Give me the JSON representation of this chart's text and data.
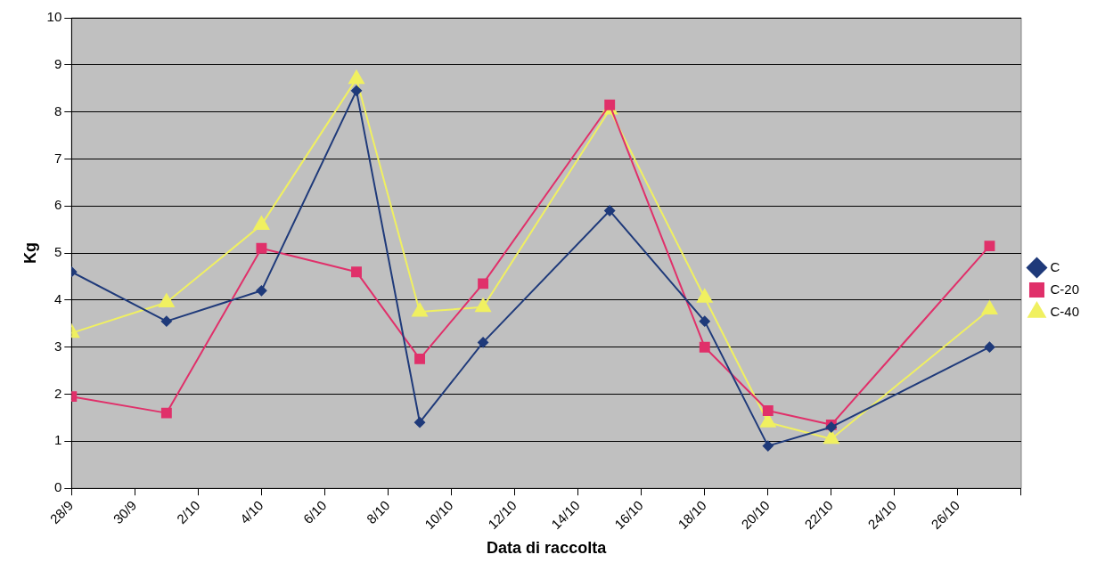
{
  "chart_data": {
    "type": "line",
    "xlabel": "Data di raccolta",
    "ylabel": "Kg",
    "x": [
      "--09-28",
      "--10-01",
      "--10-04",
      "--10-07",
      "--10-09",
      "--10-11",
      "--10-15",
      "--10-18",
      "--10-20",
      "--10-22",
      "--10-27"
    ],
    "series": [
      {
        "name": "C",
        "color": "#1f3a7a",
        "marker": "diamond",
        "values": [
          4.6,
          3.55,
          4.2,
          8.45,
          1.4,
          3.1,
          5.9,
          3.55,
          0.9,
          1.3,
          3.0
        ]
      },
      {
        "name": "C-20",
        "color": "#e0306a",
        "marker": "square",
        "values": [
          1.95,
          1.6,
          5.1,
          4.6,
          2.75,
          4.35,
          8.15,
          3.0,
          1.65,
          1.35,
          5.15
        ]
      },
      {
        "name": "C-40",
        "color": "#f0f060",
        "marker": "triangle",
        "values": [
          3.3,
          3.95,
          5.6,
          8.7,
          3.75,
          3.85,
          8.05,
          4.05,
          1.4,
          1.05,
          3.8
        ]
      }
    ],
    "xlim": [
      "--09-28",
      "--10-28"
    ],
    "xticks": [
      {
        "value": "--09-28",
        "label": "28/9"
      },
      {
        "value": "--09-30",
        "label": "30/9"
      },
      {
        "value": "--10-02",
        "label": "2/10"
      },
      {
        "value": "--10-04",
        "label": "4/10"
      },
      {
        "value": "--10-06",
        "label": "6/10"
      },
      {
        "value": "--10-08",
        "label": "8/10"
      },
      {
        "value": "--10-10",
        "label": "10/10"
      },
      {
        "value": "--10-12",
        "label": "12/10"
      },
      {
        "value": "--10-14",
        "label": "14/10"
      },
      {
        "value": "--10-16",
        "label": "16/10"
      },
      {
        "value": "--10-18",
        "label": "18/10"
      },
      {
        "value": "--10-20",
        "label": "20/10"
      },
      {
        "value": "--10-22",
        "label": "22/10"
      },
      {
        "value": "--10-24",
        "label": "24/10"
      },
      {
        "value": "--10-26",
        "label": "26/10"
      },
      {
        "value": "--10-28",
        "label": null
      }
    ],
    "ylim": [
      0,
      10
    ],
    "yticks": [
      0,
      1,
      2,
      3,
      4,
      5,
      6,
      7,
      8,
      9,
      10
    ],
    "grid": "y",
    "legend": "right",
    "line_style": "solid"
  }
}
